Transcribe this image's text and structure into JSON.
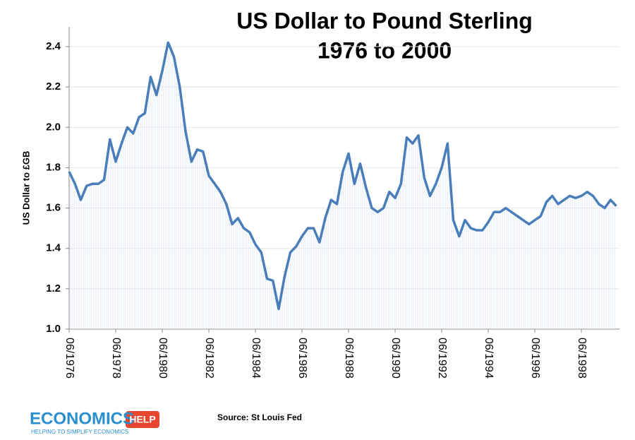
{
  "chart_data": {
    "type": "line",
    "title": "US Dollar to Pound Sterling",
    "subtitle": "1976 to 2000",
    "y_label": "US Dollar to £GB",
    "source": "Source: St Louis Fed",
    "logo": {
      "left": "ECONOMICS",
      "right": "HELP",
      "tagline": "HELPING TO SIMPLIFY ECONOMICS"
    },
    "categories": [
      "06/1976",
      null,
      null,
      null,
      null,
      null,
      null,
      null,
      "06/1978",
      null,
      null,
      null,
      null,
      null,
      null,
      null,
      "06/1980",
      null,
      null,
      null,
      null,
      null,
      null,
      null,
      "06/1982",
      null,
      null,
      null,
      null,
      null,
      null,
      null,
      "06/1984",
      null,
      null,
      null,
      null,
      null,
      null,
      null,
      "06/1986",
      null,
      null,
      null,
      null,
      null,
      null,
      null,
      "06/1988",
      null,
      null,
      null,
      null,
      null,
      null,
      null,
      "06/1990",
      null,
      null,
      null,
      null,
      null,
      null,
      null,
      "06/1992",
      null,
      null,
      null,
      null,
      null,
      null,
      null,
      "06/1994",
      null,
      null,
      null,
      null,
      null,
      null,
      null,
      "06/1996",
      null,
      null,
      null,
      null,
      null,
      null,
      null,
      "06/1998",
      null,
      null,
      null,
      null,
      null,
      null
    ],
    "series": [
      {
        "name": "US Dollar to £GB",
        "color": "#4a7ebb",
        "values": [
          1.78,
          1.72,
          1.64,
          1.71,
          1.72,
          1.72,
          1.74,
          1.94,
          1.83,
          1.92,
          2.0,
          1.97,
          2.05,
          2.07,
          2.25,
          2.16,
          2.28,
          2.42,
          2.35,
          2.2,
          1.98,
          1.83,
          1.89,
          1.88,
          1.76,
          1.72,
          1.68,
          1.62,
          1.52,
          1.55,
          1.5,
          1.48,
          1.42,
          1.38,
          1.25,
          1.24,
          1.1,
          1.26,
          1.38,
          1.41,
          1.46,
          1.5,
          1.5,
          1.43,
          1.55,
          1.64,
          1.62,
          1.78,
          1.87,
          1.72,
          1.82,
          1.7,
          1.6,
          1.58,
          1.6,
          1.68,
          1.65,
          1.72,
          1.95,
          1.92,
          1.96,
          1.75,
          1.66,
          1.72,
          1.8,
          1.92,
          1.54,
          1.46,
          1.54,
          1.5,
          1.49,
          1.49,
          1.53,
          1.58,
          1.58,
          1.6,
          1.58,
          1.56,
          1.54,
          1.52,
          1.54,
          1.56,
          1.63,
          1.66,
          1.62,
          1.64,
          1.66,
          1.65,
          1.66,
          1.68,
          1.66,
          1.62,
          1.6,
          1.64,
          1.61
        ]
      }
    ],
    "ylim": [
      1.0,
      2.4
    ],
    "yticks": [
      {
        "value": 1.0,
        "label": "1.0"
      },
      1.2,
      1.4,
      1.6,
      1.8,
      {
        "value": 2.0,
        "label": "2.0"
      },
      2.2,
      2.4
    ],
    "grid": true
  }
}
